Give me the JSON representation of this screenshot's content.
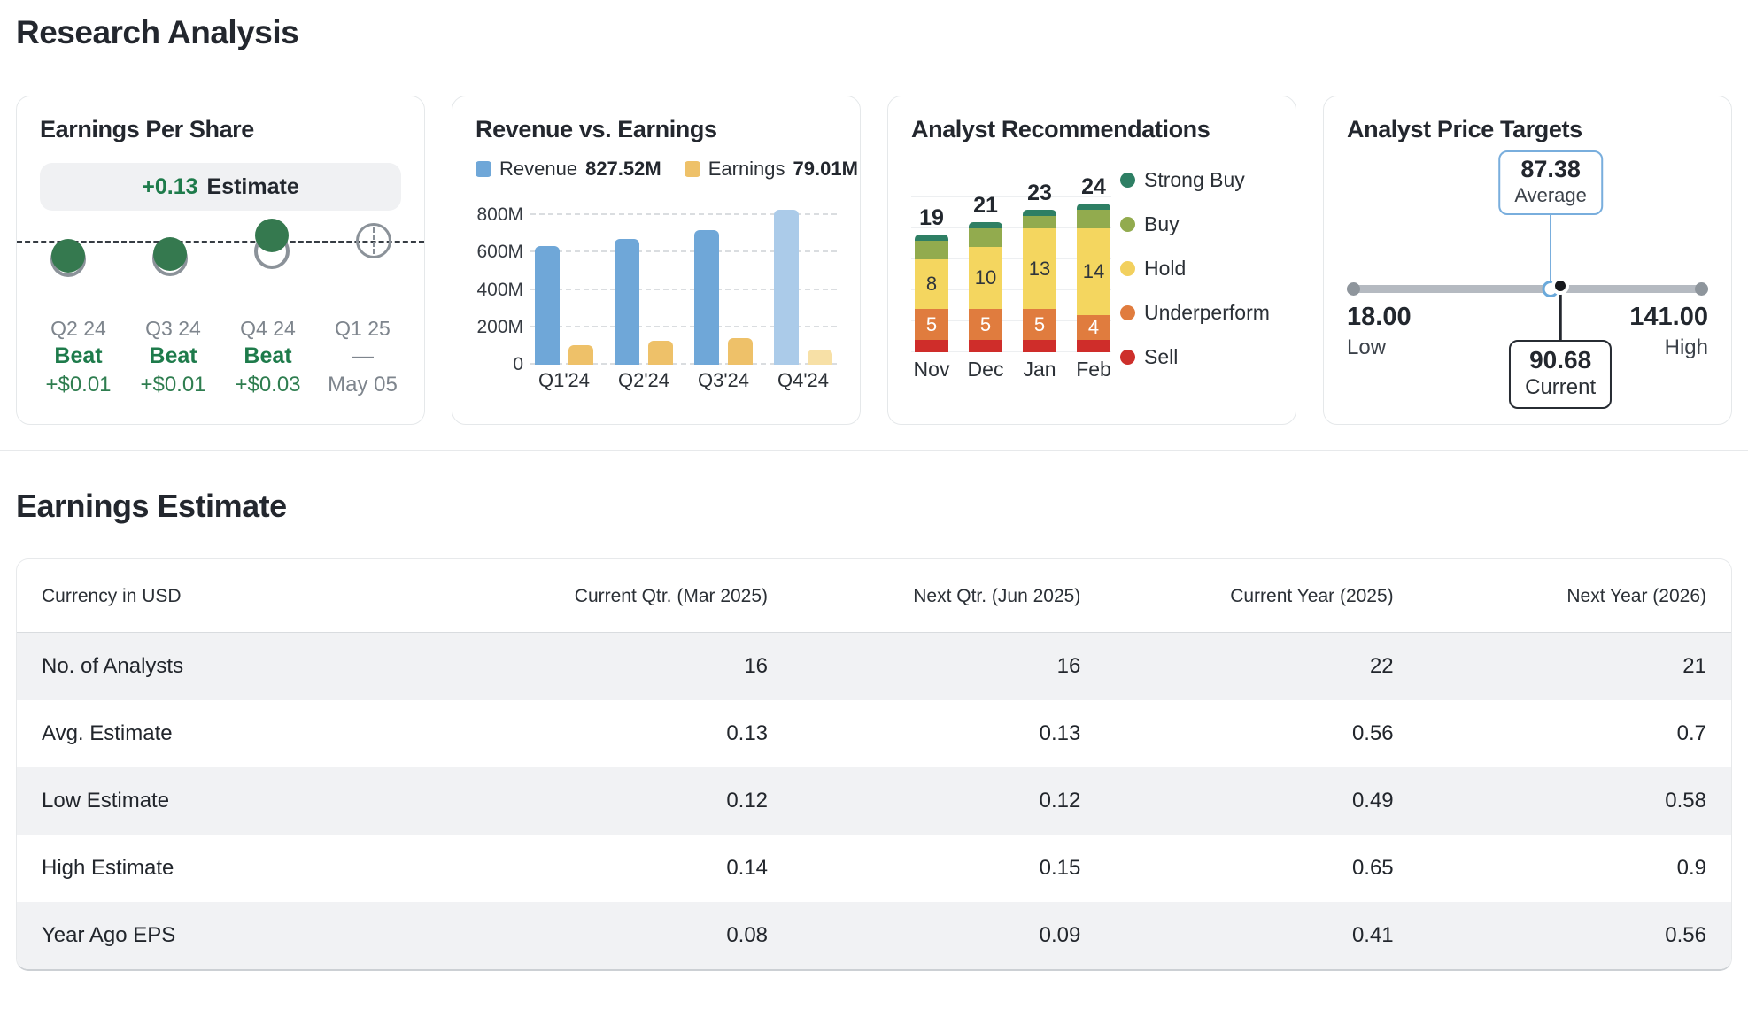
{
  "page": {
    "title": "Research Analysis"
  },
  "eps": {
    "title": "Earnings Per Share",
    "badge": {
      "value": "+0.13",
      "label": "Estimate"
    },
    "quarters": [
      {
        "label": "Q2 24",
        "result": "Beat",
        "detail": "+$0.01",
        "marker": "beat",
        "actual_dy": 17,
        "estimate_dy": 21
      },
      {
        "label": "Q3 24",
        "result": "Beat",
        "detail": "+$0.01",
        "marker": "beat",
        "actual_dy": 15,
        "estimate_dy": 20
      },
      {
        "label": "Q4 24",
        "result": "Beat",
        "detail": "+$0.03",
        "marker": "beat",
        "actual_dy": -6,
        "estimate_dy": 12
      },
      {
        "label": "Q1 25",
        "result": "—",
        "detail": "May 05",
        "marker": "upcoming",
        "actual_dy": null,
        "estimate_dy": 0
      }
    ]
  },
  "revenue_card": {
    "title": "Revenue vs. Earnings",
    "legend": [
      {
        "label": "Revenue",
        "value": "827.52M",
        "color": "#6fa7d8"
      },
      {
        "label": "Earnings",
        "value": "79.01M",
        "color": "#eec169"
      }
    ],
    "chart_data": {
      "type": "bar",
      "categories": [
        "Q1'24",
        "Q2'24",
        "Q3'24",
        "Q4'24"
      ],
      "series": [
        {
          "name": "Revenue",
          "values_M": [
            633,
            672,
            722,
            827.52
          ],
          "color": "#6fa7d8",
          "color_last": "#abcbe9"
        },
        {
          "name": "Earnings",
          "values_M": [
            105,
            130,
            140,
            79.01
          ],
          "color": "#eec169",
          "color_last": "#f7e0a6"
        }
      ],
      "ytick_labels": [
        "0",
        "200M",
        "400M",
        "600M",
        "800M"
      ],
      "ytick_values": [
        0,
        200,
        400,
        600,
        800
      ],
      "ylim": [
        0,
        900
      ],
      "highlight_last": true,
      "grid": "dashed"
    }
  },
  "recs_card": {
    "title": "Analyst Recommendations",
    "chart_data": {
      "type": "stacked-bar",
      "categories": [
        "Nov",
        "Dec",
        "Jan",
        "Feb"
      ],
      "totals": [
        19,
        21,
        23,
        24
      ],
      "series": [
        {
          "name": "Sell",
          "values": [
            2,
            2,
            2,
            2
          ],
          "color": "#cf2d2a",
          "label_color": "",
          "show_labels": false
        },
        {
          "name": "Underperform",
          "values": [
            5,
            5,
            5,
            4
          ],
          "color": "#e07c3e",
          "label_color": "#ffffff",
          "show_labels": true
        },
        {
          "name": "Hold",
          "values": [
            8,
            10,
            13,
            14
          ],
          "color": "#f4d65f",
          "label_color": "#2f353c",
          "show_labels": true
        },
        {
          "name": "Buy",
          "values": [
            3,
            3,
            2,
            3
          ],
          "color": "#92ab4e",
          "label_color": "",
          "show_labels": false
        },
        {
          "name": "Strong Buy",
          "values": [
            1,
            1,
            1,
            1
          ],
          "color": "#2e7f64",
          "label_color": "",
          "show_labels": false
        }
      ],
      "ylim": [
        0,
        25
      ],
      "gridline_step": 5
    },
    "legend": [
      {
        "label": "Strong Buy",
        "color": "#2e7f64"
      },
      {
        "label": "Buy",
        "color": "#92ab4e"
      },
      {
        "label": "Hold",
        "color": "#f2d05e"
      },
      {
        "label": "Underperform",
        "color": "#e07c3e"
      },
      {
        "label": "Sell",
        "color": "#cd2f2b"
      }
    ]
  },
  "targets_card": {
    "title": "Analyst Price Targets",
    "low": {
      "value": "18.00",
      "label": "Low"
    },
    "high": {
      "value": "141.00",
      "label": "High"
    },
    "average": {
      "value": "87.38",
      "label": "Average",
      "pos_pct": 56.4
    },
    "current": {
      "value": "90.68",
      "label": "Current",
      "pos_pct": 59.1
    }
  },
  "earnings_table": {
    "title": "Earnings Estimate",
    "columns": [
      "Currency in USD",
      "Current Qtr. (Mar 2025)",
      "Next Qtr. (Jun 2025)",
      "Current Year (2025)",
      "Next Year (2026)"
    ],
    "rows": [
      {
        "label": "No. of Analysts",
        "values": [
          "16",
          "16",
          "22",
          "21"
        ]
      },
      {
        "label": "Avg. Estimate",
        "values": [
          "0.13",
          "0.13",
          "0.56",
          "0.7"
        ]
      },
      {
        "label": "Low Estimate",
        "values": [
          "0.12",
          "0.12",
          "0.49",
          "0.58"
        ]
      },
      {
        "label": "High Estimate",
        "values": [
          "0.14",
          "0.15",
          "0.65",
          "0.9"
        ]
      },
      {
        "label": "Year Ago EPS",
        "values": [
          "0.08",
          "0.09",
          "0.41",
          "0.56"
        ]
      }
    ]
  },
  "colors": {
    "accent_green": "#1e7b4b",
    "marker_green": "#35794f",
    "marker_gray": "#8b9299",
    "text_dark": "#23272e",
    "text_gray": "#7e858d",
    "target_blue": "#6aa9db"
  }
}
